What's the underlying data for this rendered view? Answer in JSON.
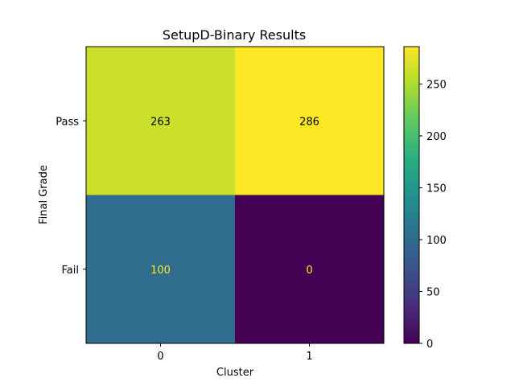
{
  "chart_data": {
    "type": "heatmap",
    "title": "SetupD-Binary Results",
    "xlabel": "Cluster",
    "ylabel": "Final Grade",
    "x_categories": [
      "0",
      "1"
    ],
    "y_categories": [
      "Pass",
      "Fail"
    ],
    "values": [
      [
        263,
        286
      ],
      [
        100,
        0
      ]
    ],
    "colormap": "viridis",
    "color_range": [
      0,
      286
    ],
    "colorbar_ticks": [
      0,
      50,
      100,
      150,
      200,
      250
    ],
    "colorbar_tick_labels": [
      "0",
      "50",
      "100",
      "150",
      "200",
      "250"
    ],
    "cell_text_colors": {
      "dark_background": "#fde725",
      "light_background": "#000000"
    }
  }
}
